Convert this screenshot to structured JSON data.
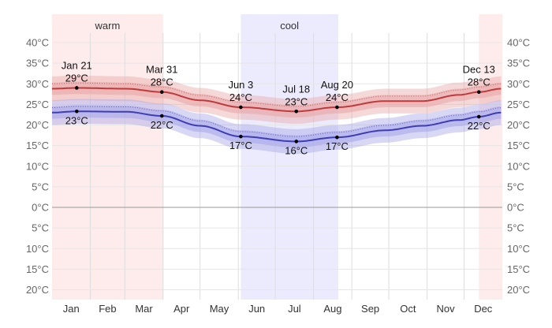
{
  "chart_data": {
    "type": "line",
    "title": "",
    "xlabel": "",
    "ylabel": "",
    "ylim": [
      -20,
      40
    ],
    "grid": true,
    "y_ticks": [
      {
        "value": 40,
        "label": "40°C"
      },
      {
        "value": 35,
        "label": "35°C"
      },
      {
        "value": 30,
        "label": "30°C"
      },
      {
        "value": 25,
        "label": "25°C"
      },
      {
        "value": 20,
        "label": "20°C"
      },
      {
        "value": 15,
        "label": "15°C"
      },
      {
        "value": 10,
        "label": "10°C"
      },
      {
        "value": 5,
        "label": "5°C"
      },
      {
        "value": 0,
        "label": "0°C"
      },
      {
        "value": -5,
        "label": "5°C"
      },
      {
        "value": -10,
        "label": "10°C"
      },
      {
        "value": -15,
        "label": "15°C"
      },
      {
        "value": -20,
        "label": "20°C"
      }
    ],
    "months": [
      "Jan",
      "Feb",
      "Mar",
      "Apr",
      "May",
      "Jun",
      "Jul",
      "Aug",
      "Sep",
      "Oct",
      "Nov",
      "Dec"
    ],
    "seasons": [
      {
        "label": "warm",
        "start": "Jan 1",
        "end": "Mar 31",
        "color": "#fdeceb"
      },
      {
        "label": "",
        "start": "Dec 13",
        "end": "Dec 31",
        "color": "#fdeceb"
      },
      {
        "label": "cool",
        "start": "Jun 3",
        "end": "Aug 20",
        "color": "#ebebfd"
      }
    ],
    "series": [
      {
        "key": "high",
        "color": "#c0393b",
        "band_color": "#e8a9a9",
        "points": [
          [
            1,
            28.8
          ],
          [
            21,
            29
          ],
          [
            61,
            28.8
          ],
          [
            90,
            28
          ],
          [
            121,
            26
          ],
          [
            154,
            24.3
          ],
          [
            199,
            23.3
          ],
          [
            232,
            24.3
          ],
          [
            271,
            25.8
          ],
          [
            301,
            25.8
          ],
          [
            331,
            27.3
          ],
          [
            347,
            28
          ],
          [
            365,
            28.8
          ]
        ]
      },
      {
        "key": "low",
        "color": "#3d3db8",
        "band_color": "#a9a9e8",
        "points": [
          [
            1,
            23
          ],
          [
            21,
            23.3
          ],
          [
            61,
            23.2
          ],
          [
            90,
            22.2
          ],
          [
            121,
            19.8
          ],
          [
            154,
            17.2
          ],
          [
            199,
            16
          ],
          [
            232,
            17
          ],
          [
            271,
            18.7
          ],
          [
            301,
            19.8
          ],
          [
            331,
            21.2
          ],
          [
            347,
            22
          ],
          [
            365,
            23
          ]
        ]
      }
    ],
    "annotations": [
      {
        "date": "Jan 21",
        "day": 21,
        "high": "29°C",
        "low": "23°C",
        "high_value": 29,
        "low_value": 23.3
      },
      {
        "date": "Mar 31",
        "day": 90,
        "high": "28°C",
        "low": "22°C",
        "high_value": 28,
        "low_value": 22.2
      },
      {
        "date": "Jun 3",
        "day": 154,
        "high": "24°C",
        "low": "17°C",
        "high_value": 24.3,
        "low_value": 17.2
      },
      {
        "date": "Jul 18",
        "day": 199,
        "high": "23°C",
        "low": "16°C",
        "high_value": 23.3,
        "low_value": 16
      },
      {
        "date": "Aug 20",
        "day": 232,
        "high": "24°C",
        "low": "17°C",
        "high_value": 24.3,
        "low_value": 17
      },
      {
        "date": "Dec 13",
        "day": 347,
        "high": "28°C",
        "low": "22°C",
        "high_value": 28,
        "low_value": 22
      }
    ]
  }
}
